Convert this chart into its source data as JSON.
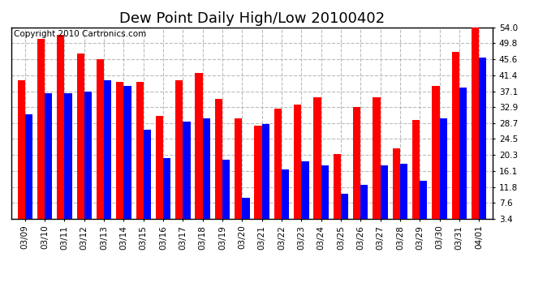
{
  "title": "Dew Point Daily High/Low 20100402",
  "copyright": "Copyright 2010 Cartronics.com",
  "dates": [
    "03/09",
    "03/10",
    "03/11",
    "03/12",
    "03/13",
    "03/14",
    "03/15",
    "03/16",
    "03/17",
    "03/18",
    "03/19",
    "03/20",
    "03/21",
    "03/22",
    "03/23",
    "03/24",
    "03/25",
    "03/26",
    "03/27",
    "03/28",
    "03/29",
    "03/30",
    "03/31",
    "04/01"
  ],
  "highs": [
    40.0,
    51.0,
    52.0,
    47.0,
    45.5,
    39.5,
    39.5,
    30.5,
    40.0,
    42.0,
    35.0,
    30.0,
    28.0,
    32.5,
    33.5,
    35.5,
    20.5,
    33.0,
    35.5,
    22.0,
    29.5,
    38.5,
    47.5,
    54.0
  ],
  "lows": [
    31.0,
    36.5,
    36.5,
    37.0,
    40.0,
    38.5,
    27.0,
    19.5,
    29.0,
    30.0,
    19.0,
    9.0,
    28.5,
    16.5,
    18.5,
    17.5,
    10.0,
    12.5,
    17.5,
    18.0,
    13.5,
    30.0,
    38.0,
    46.0
  ],
  "high_color": "#ff0000",
  "low_color": "#0000ff",
  "background_color": "#ffffff",
  "plot_background": "#ffffff",
  "ytick_labels": [
    "3.4",
    "7.6",
    "11.8",
    "16.1",
    "20.3",
    "24.5",
    "28.7",
    "32.9",
    "37.1",
    "41.4",
    "45.6",
    "49.8",
    "54.0"
  ],
  "ytick_values": [
    3.4,
    7.6,
    11.8,
    16.1,
    20.3,
    24.5,
    28.7,
    32.9,
    37.1,
    41.4,
    45.6,
    49.8,
    54.0
  ],
  "ymin": 3.4,
  "ymax": 54.0,
  "grid_color": "#bbbbbb",
  "title_fontsize": 13,
  "copyright_fontsize": 7.5,
  "tick_fontsize": 7.5,
  "bar_width": 0.38
}
